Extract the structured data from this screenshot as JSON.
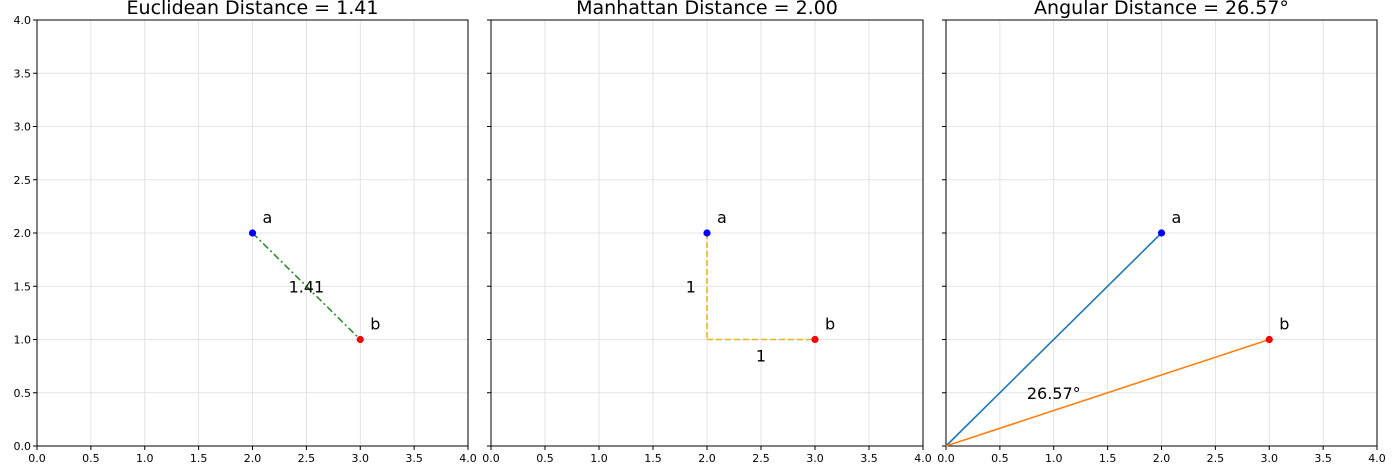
{
  "colors": {
    "point_a": "#0000ff",
    "point_b": "#ff0000",
    "euclidean_line": "#2e8b2e",
    "manhattan_line": "#e6b422",
    "vector_a": "#1f77b4",
    "vector_b": "#ff7f0e",
    "grid": "#dcdcdc"
  },
  "chart_data": [
    {
      "type": "line",
      "title": "Euclidean Distance = 1.41",
      "xlim": [
        0,
        4
      ],
      "ylim": [
        0,
        4
      ],
      "x_ticks": [
        "0.0",
        "0.5",
        "1.0",
        "1.5",
        "2.0",
        "2.5",
        "3.0",
        "3.5",
        "4.0"
      ],
      "y_ticks": [
        "0.0",
        "0.5",
        "1.0",
        "1.5",
        "2.0",
        "2.5",
        "3.0",
        "3.5",
        "4.0"
      ],
      "grid": true,
      "points": [
        {
          "name": "a",
          "x": 2,
          "y": 2,
          "color": "#0000ff"
        },
        {
          "name": "b",
          "x": 3,
          "y": 1,
          "color": "#ff0000"
        }
      ],
      "segments": [
        {
          "from": [
            2,
            2
          ],
          "to": [
            3,
            1
          ],
          "style": "dashdot",
          "color": "#2e8b2e"
        }
      ],
      "annotations": [
        {
          "text": "1.41",
          "x": 2.5,
          "y": 1.5
        }
      ]
    },
    {
      "type": "line",
      "title": "Manhattan Distance = 2.00",
      "xlim": [
        0,
        4
      ],
      "ylim": [
        0,
        4
      ],
      "x_ticks": [
        "0.0",
        "0.5",
        "1.0",
        "1.5",
        "2.0",
        "2.5",
        "3.0",
        "3.5",
        "4.0"
      ],
      "y_ticks": [],
      "grid": true,
      "points": [
        {
          "name": "a",
          "x": 2,
          "y": 2,
          "color": "#0000ff"
        },
        {
          "name": "b",
          "x": 3,
          "y": 1,
          "color": "#ff0000"
        }
      ],
      "segments": [
        {
          "from": [
            2,
            2
          ],
          "to": [
            2,
            1
          ],
          "style": "dashed",
          "color": "#e6b422"
        },
        {
          "from": [
            2,
            1
          ],
          "to": [
            3,
            1
          ],
          "style": "dashed",
          "color": "#e6b422"
        }
      ],
      "annotations": [
        {
          "text": "1",
          "x": 1.85,
          "y": 1.5
        },
        {
          "text": "1",
          "x": 2.5,
          "y": 0.85
        }
      ]
    },
    {
      "type": "line",
      "title": "Angular Distance = 26.57°",
      "xlim": [
        0,
        4
      ],
      "ylim": [
        0,
        4
      ],
      "x_ticks": [
        "0.0",
        "0.5",
        "1.0",
        "1.5",
        "2.0",
        "2.5",
        "3.0",
        "3.5",
        "4.0"
      ],
      "y_ticks": [],
      "grid": true,
      "points": [
        {
          "name": "a",
          "x": 2,
          "y": 2,
          "color": "#0000ff"
        },
        {
          "name": "b",
          "x": 3,
          "y": 1,
          "color": "#ff0000"
        }
      ],
      "segments": [
        {
          "from": [
            0,
            0
          ],
          "to": [
            2,
            2
          ],
          "style": "solid",
          "color": "#1f77b4"
        },
        {
          "from": [
            0,
            0
          ],
          "to": [
            3,
            1
          ],
          "style": "solid",
          "color": "#ff7f0e"
        }
      ],
      "annotations": [
        {
          "text": "26.57°",
          "x": 1.0,
          "y": 0.5
        }
      ]
    }
  ]
}
